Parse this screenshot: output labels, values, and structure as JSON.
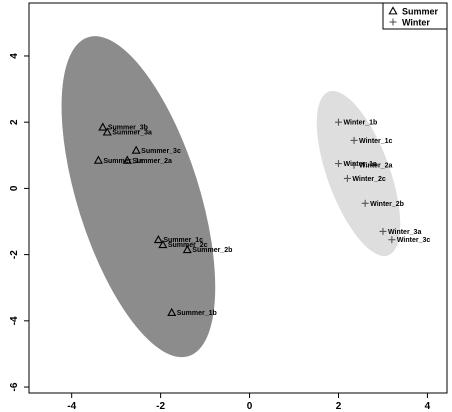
{
  "chart_data": {
    "type": "scatter",
    "xlim": [
      -4.96,
      4.44
    ],
    "ylim": [
      -6.18,
      5.6
    ],
    "x_ticks": [
      -4,
      -2,
      0,
      2,
      4
    ],
    "y_ticks": [
      4,
      2,
      0,
      -2,
      -4,
      -6
    ],
    "grid": false,
    "legend_position": "top-right",
    "series": [
      {
        "name": "Summer",
        "marker": "triangle",
        "ellipse_color": "#8c8c8c",
        "ellipse": {
          "cx": -2.5,
          "cy": -0.25,
          "rx": 1.37,
          "ry": 5.05,
          "angle_deg": -17.5
        },
        "points": [
          {
            "label": "Summer_3b",
            "x": -3.3,
            "y": 1.85
          },
          {
            "label": "Summer_3a",
            "x": -3.2,
            "y": 1.7
          },
          {
            "label": "Summer_3c",
            "x": -2.55,
            "y": 1.15
          },
          {
            "label": "Summer_1a",
            "x": -3.4,
            "y": 0.85
          },
          {
            "label": "Summer_2a",
            "x": -2.75,
            "y": 0.85
          },
          {
            "label": "Summer_1c",
            "x": -2.05,
            "y": -1.55
          },
          {
            "label": "Summer_2c",
            "x": -1.95,
            "y": -1.7
          },
          {
            "label": "Summer_2b",
            "x": -1.4,
            "y": -1.85
          },
          {
            "label": "Summer_1b",
            "x": -1.75,
            "y": -3.75
          }
        ]
      },
      {
        "name": "Winter",
        "marker": "plus",
        "ellipse_color": "#dedede",
        "ellipse": {
          "cx": 2.45,
          "cy": 0.45,
          "rx": 0.7,
          "ry": 2.63,
          "angle_deg": -20
        },
        "points": [
          {
            "label": "Winter_1b",
            "x": 2.0,
            "y": 2.0
          },
          {
            "label": "Winter_1c",
            "x": 2.35,
            "y": 1.45
          },
          {
            "label": "Winter_1a",
            "x": 2.0,
            "y": 0.75
          },
          {
            "label": "Winter_2a",
            "x": 2.35,
            "y": 0.7
          },
          {
            "label": "Winter_2c",
            "x": 2.2,
            "y": 0.3
          },
          {
            "label": "Winter_2b",
            "x": 2.6,
            "y": -0.45
          },
          {
            "label": "Winter_3a",
            "x": 3.0,
            "y": -1.3
          },
          {
            "label": "Winter_3c",
            "x": 3.2,
            "y": -1.55
          }
        ]
      }
    ]
  }
}
